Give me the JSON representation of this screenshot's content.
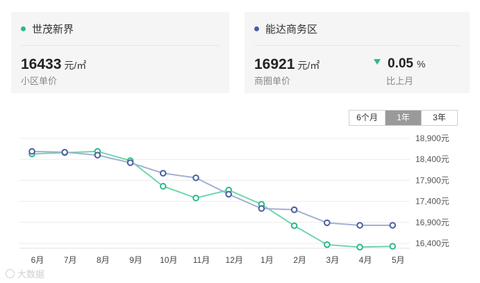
{
  "cards": {
    "left": {
      "name": "世茂新界",
      "dot_color": "#2db98c",
      "price": "16433",
      "unit": "元/㎡",
      "sub": "小区单价"
    },
    "right": {
      "name": "能达商务区",
      "dot_color": "#4a5fa0",
      "price": "16921",
      "unit": "元/㎡",
      "sub": "商圈单价",
      "change": "0.05",
      "change_unit": "%",
      "change_direction": "down",
      "change_sub": "比上月"
    }
  },
  "tabs": [
    {
      "label": "6个月",
      "active": false
    },
    {
      "label": "1年",
      "active": true
    },
    {
      "label": "3年",
      "active": false
    }
  ],
  "watermark": "大数据",
  "chart_data": {
    "type": "line",
    "categories": [
      "6月",
      "7月",
      "8月",
      "9月",
      "10月",
      "11月",
      "12月",
      "1月",
      "2月",
      "3月",
      "4月",
      "5月"
    ],
    "ylim": [
      16400,
      18900
    ],
    "yticks": [
      16400,
      16900,
      17400,
      17900,
      18400,
      18900
    ],
    "ytick_labels": [
      "16,400元",
      "16,900元",
      "17,400元",
      "17,900元",
      "18,400元",
      "18,900元"
    ],
    "grid": true,
    "series": [
      {
        "color": "#6fd6ad",
        "marker_color": "#2db98c",
        "values": [
          18530,
          18560,
          18590,
          18370,
          17760,
          17480,
          17670,
          17330,
          16820,
          16370,
          16310,
          16330
        ]
      },
      {
        "color": "#a4b0d3",
        "marker_color": "#4a5fa0",
        "values": [
          18590,
          18570,
          18500,
          18320,
          18070,
          17960,
          17570,
          17230,
          17200,
          16890,
          16830,
          16830
        ]
      }
    ]
  }
}
